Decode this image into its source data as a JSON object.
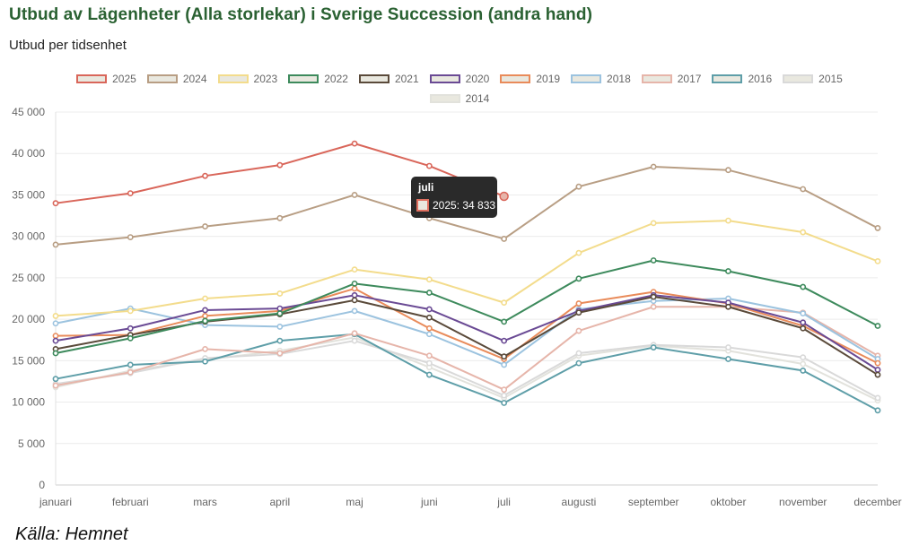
{
  "header": {
    "title": "Utbud av Lägenheter (Alla storlekar) i Sverige Succession (andra hand)",
    "subtitle": "Utbud per tidsenhet"
  },
  "source": "Källa: Hemnet",
  "tooltip": {
    "title": "juli",
    "label": "2025: 34 833"
  },
  "chart_data": {
    "type": "line",
    "title": "Utbud av Lägenheter (Alla storlekar) i Sverige Succession (andra hand)",
    "subtitle": "Utbud per tidsenhet",
    "categories": [
      "januari",
      "februari",
      "mars",
      "april",
      "maj",
      "juni",
      "juli",
      "augusti",
      "september",
      "oktober",
      "november",
      "december"
    ],
    "ylim": [
      0,
      45000
    ],
    "yticks": [
      0,
      5000,
      10000,
      15000,
      20000,
      25000,
      30000,
      35000,
      40000,
      45000
    ],
    "ytick_labels": [
      "0",
      "5 000",
      "10 000",
      "15 000",
      "20 000",
      "25 000",
      "30 000",
      "35 000",
      "40 000",
      "45 000"
    ],
    "grid": true,
    "legend_position": "top",
    "series": [
      {
        "name": "2025",
        "color": "#d9665a",
        "values": [
          34000,
          35200,
          37300,
          38600,
          41200,
          38500,
          34833,
          null,
          null,
          null,
          null,
          null
        ]
      },
      {
        "name": "2024",
        "color": "#b89e84",
        "values": [
          29000,
          29900,
          31200,
          32200,
          35000,
          32200,
          29700,
          36000,
          38400,
          38000,
          35700,
          31000
        ]
      },
      {
        "name": "2023",
        "color": "#f3dc8c",
        "values": [
          20400,
          21000,
          22500,
          23100,
          26000,
          24800,
          22000,
          28000,
          31600,
          31900,
          30500,
          27000
        ]
      },
      {
        "name": "2022",
        "color": "#3d8a5c",
        "values": [
          15900,
          17700,
          19800,
          20700,
          24300,
          23200,
          19700,
          24900,
          27100,
          25800,
          23900,
          19200
        ]
      },
      {
        "name": "2021",
        "color": "#5a4a3a",
        "values": [
          16400,
          18100,
          19700,
          20600,
          22300,
          20200,
          15500,
          20800,
          22700,
          21500,
          18900,
          13300
        ]
      },
      {
        "name": "2020",
        "color": "#6a4a94",
        "values": [
          17400,
          18900,
          21100,
          21300,
          22900,
          21200,
          17400,
          21000,
          22900,
          22000,
          19600,
          13900
        ]
      },
      {
        "name": "2019",
        "color": "#e98b5a",
        "values": [
          18000,
          18100,
          20400,
          21000,
          23700,
          18900,
          15200,
          21900,
          23300,
          21900,
          19200,
          14700
        ]
      },
      {
        "name": "2018",
        "color": "#9cc3df",
        "values": [
          19500,
          21300,
          19300,
          19100,
          21000,
          18200,
          14500,
          21200,
          22200,
          22500,
          20700,
          15200
        ]
      },
      {
        "name": "2017",
        "color": "#e6b5aa",
        "values": [
          12000,
          13600,
          16400,
          15900,
          18300,
          15600,
          11500,
          18600,
          21500,
          21500,
          20800,
          15600
        ]
      },
      {
        "name": "2016",
        "color": "#5e9ea8",
        "values": [
          12800,
          14500,
          14900,
          17400,
          18200,
          13300,
          9900,
          14700,
          16600,
          15200,
          13800,
          9000
        ]
      },
      {
        "name": "2015",
        "color": "#d9d9d9",
        "values": [
          12200,
          13500,
          15300,
          15800,
          17400,
          14700,
          10800,
          15900,
          16900,
          16600,
          15400,
          10500
        ]
      },
      {
        "name": "2014",
        "color": "#e2e2dc",
        "values": [
          11800,
          13800,
          15100,
          16200,
          17800,
          14200,
          10500,
          15600,
          16800,
          16200,
          14600,
          10200
        ]
      }
    ],
    "highlight": {
      "series": "2025",
      "category": "juli",
      "value": 34833
    }
  }
}
